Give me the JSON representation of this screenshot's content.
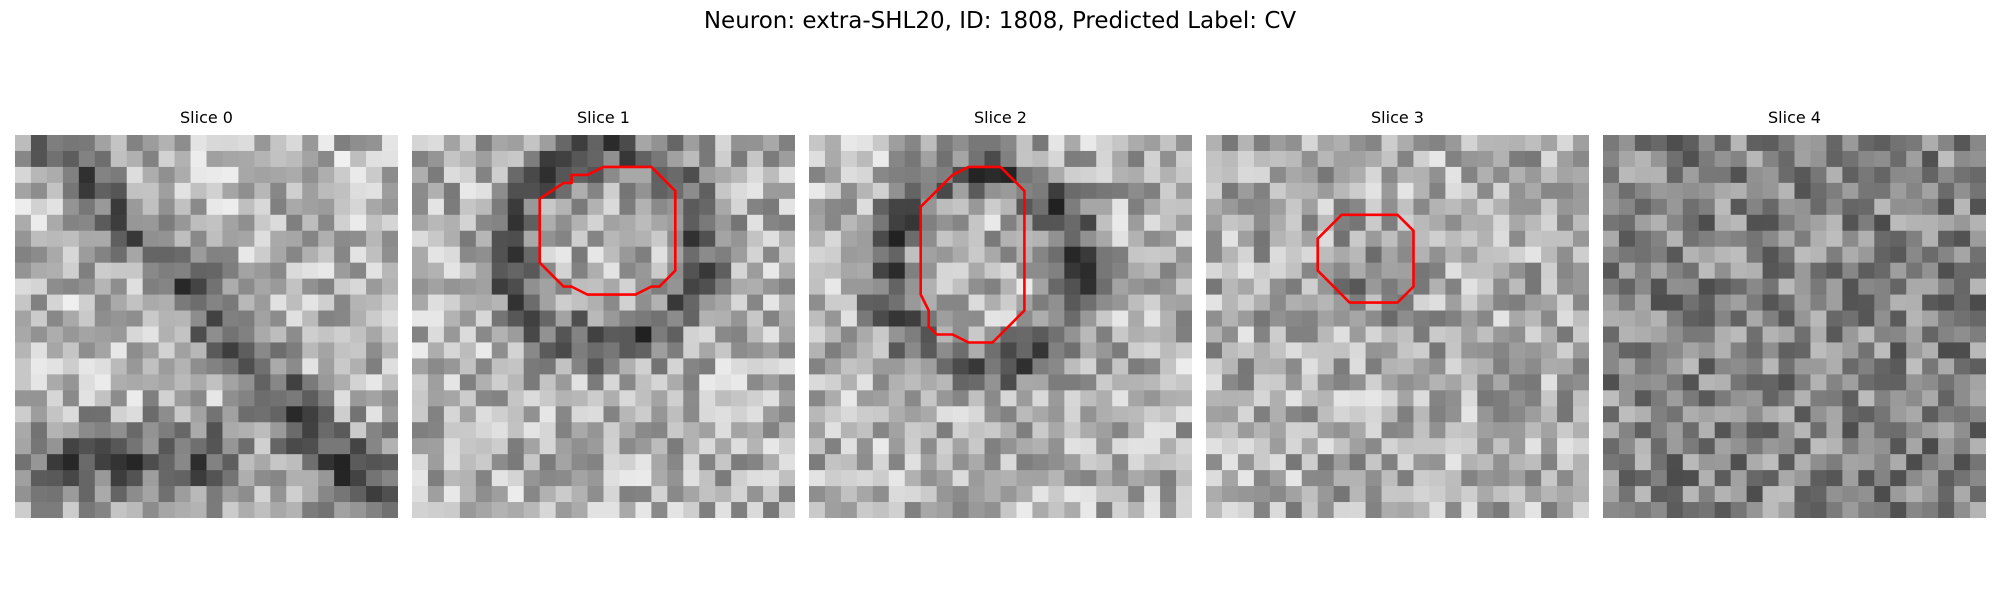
{
  "figure": {
    "title": "Neuron: extra-SHL20, ID: 1808, Predicted Label: CV",
    "contour_color": "#ff0000"
  },
  "slices": [
    {
      "title": "Slice 0",
      "contour": null
    },
    {
      "title": "Slice 1",
      "contour": [
        [
          10,
          2.5
        ],
        [
          11,
          2.5
        ],
        [
          12,
          2
        ],
        [
          15,
          2
        ],
        [
          16,
          3
        ],
        [
          16.5,
          3.5
        ],
        [
          16.5,
          8.5
        ],
        [
          15.5,
          9.5
        ],
        [
          15,
          9.5
        ],
        [
          14,
          10
        ],
        [
          11,
          10
        ],
        [
          10,
          9.5
        ],
        [
          9.5,
          9.5
        ],
        [
          8,
          8
        ],
        [
          8,
          4
        ],
        [
          9.5,
          3
        ],
        [
          10,
          3
        ]
      ]
    },
    {
      "title": "Slice 2",
      "contour": [
        [
          10,
          2
        ],
        [
          12,
          2
        ],
        [
          13.5,
          3.5
        ],
        [
          13.5,
          11
        ],
        [
          12.5,
          12
        ],
        [
          12,
          12.5
        ],
        [
          11.5,
          13
        ],
        [
          10,
          13
        ],
        [
          9,
          12.5
        ],
        [
          8,
          12.5
        ],
        [
          7.5,
          12
        ],
        [
          7.5,
          11
        ],
        [
          7,
          10
        ],
        [
          7,
          8
        ],
        [
          7,
          4.5
        ],
        [
          9,
          2.5
        ]
      ]
    },
    {
      "title": "Slice 3",
      "contour": [
        [
          9,
          5
        ],
        [
          12,
          5
        ],
        [
          13,
          6
        ],
        [
          13,
          9.5
        ],
        [
          12,
          10.5
        ],
        [
          10,
          10.5
        ],
        [
          9,
          10.5
        ],
        [
          7.5,
          9
        ],
        [
          7,
          8.5
        ],
        [
          7,
          6.5
        ],
        [
          8.5,
          5
        ]
      ]
    },
    {
      "title": "Slice 4",
      "contour": null
    }
  ]
}
